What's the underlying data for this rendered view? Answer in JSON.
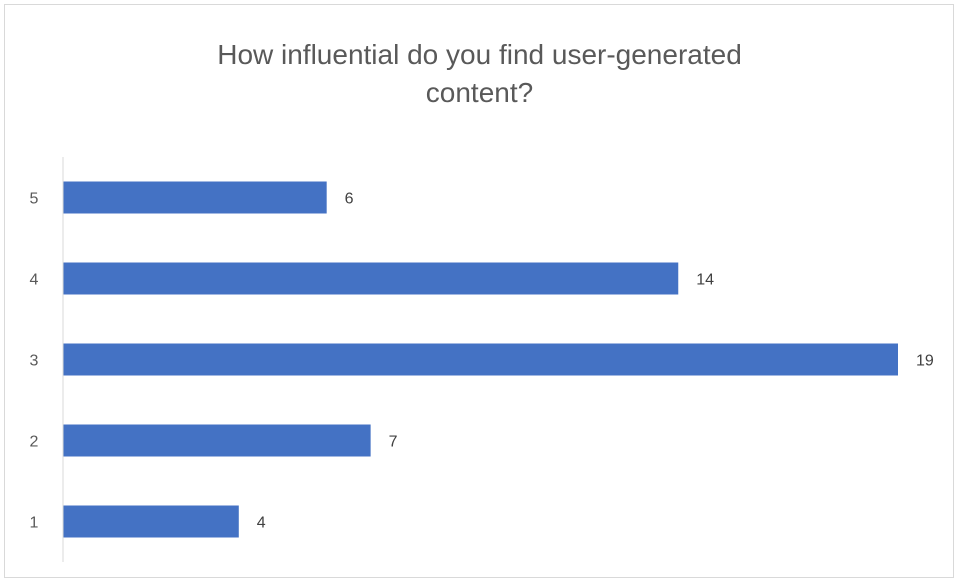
{
  "chart_data": {
    "type": "bar",
    "orientation": "horizontal",
    "title_lines": [
      "How influential do you find user-generated",
      "content?"
    ],
    "categories": [
      "1",
      "2",
      "3",
      "4",
      "5"
    ],
    "values": [
      4,
      7,
      19,
      14,
      6
    ],
    "xlim": [
      0,
      19
    ],
    "bar_color": "#4472c4",
    "grid": false,
    "legend": "none",
    "data_labels": true
  }
}
